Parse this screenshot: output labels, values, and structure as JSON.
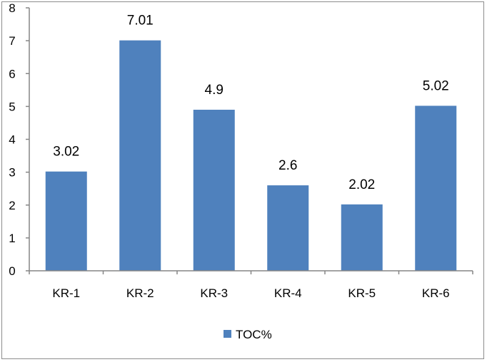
{
  "chart_data": {
    "type": "bar",
    "categories": [
      "KR-1",
      "KR-2",
      "KR-3",
      "KR-4",
      "KR-5",
      "KR-6"
    ],
    "series": [
      {
        "name": "TOC%",
        "values": [
          3.02,
          7.01,
          4.9,
          2.6,
          2.02,
          5.02
        ],
        "color": "#4f81bd"
      }
    ],
    "data_labels": [
      "3.02",
      "7.01",
      "4.9",
      "2.6",
      "2.02",
      "5.02"
    ],
    "y_ticks": [
      "0",
      "1",
      "2",
      "3",
      "4",
      "5",
      "6",
      "7",
      "8"
    ],
    "ylim": [
      0,
      8
    ],
    "title": "",
    "xlabel": "",
    "ylabel": "",
    "grid": false,
    "legend_position": "bottom"
  }
}
